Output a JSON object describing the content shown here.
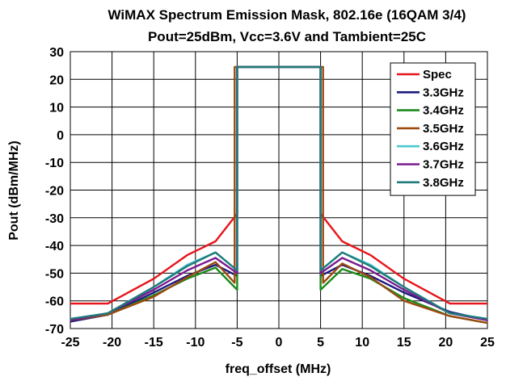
{
  "chart_data": {
    "type": "line",
    "title": "WiMAX Spectrum Emission Mask, 802.16e (16QAM 3/4)",
    "subtitle": "Pout=25dBm, Vcc=3.6V and Tambient=25C",
    "xlabel": "freq_offset (MHz)",
    "ylabel": "Pout (dBm/MHz)",
    "xlim": [
      -25,
      25
    ],
    "ylim": [
      -70,
      30
    ],
    "xticks": [
      -25,
      -20,
      -15,
      -10,
      -5,
      0,
      5,
      10,
      15,
      20,
      25
    ],
    "yticks": [
      30,
      20,
      10,
      0,
      -10,
      -20,
      -30,
      -40,
      -50,
      -60,
      -70
    ],
    "grid": true,
    "legend_position": "top-right",
    "series": [
      {
        "name": "Spec",
        "color": "#e8141b",
        "x": [
          -25,
          -20.5,
          -15,
          -11,
          -7.6,
          -5,
          -5,
          5,
          5,
          7.6,
          11,
          15,
          20.5,
          25
        ],
        "y": [
          -61,
          -61,
          -52,
          -43.5,
          -38.5,
          -28.5,
          24.5,
          24.5,
          -28.5,
          -38.5,
          -43.5,
          -52,
          -61,
          -61
        ]
      },
      {
        "name": "3.3GHz",
        "color": "#1a1a80",
        "x": [
          -25,
          -20.5,
          -15,
          -11,
          -7.6,
          -5,
          -5,
          5,
          5,
          7.6,
          11,
          15,
          20.5,
          25
        ],
        "y": [
          -67.5,
          -65,
          -57,
          -51,
          -47,
          -51,
          24.5,
          24.5,
          -51,
          -47,
          -51,
          -57,
          -64,
          -67
        ]
      },
      {
        "name": "3.4GHz",
        "color": "#1b8a1b",
        "x": [
          -25,
          -20.5,
          -15,
          -11,
          -7.6,
          -5,
          -5,
          5,
          5,
          7.6,
          11,
          15,
          20.5,
          25
        ],
        "y": [
          -67,
          -65,
          -58,
          -52,
          -48,
          -56,
          24.5,
          24.5,
          -56,
          -48.5,
          -52,
          -59,
          -65.5,
          -68
        ]
      },
      {
        "name": "3.5GHz",
        "color": "#9c4a10",
        "x": [
          -25,
          -20.5,
          -15,
          -11,
          -7.6,
          -5.3,
          -5.3,
          5.3,
          5.3,
          7.6,
          11,
          15,
          20.5,
          25
        ],
        "y": [
          -67,
          -65,
          -58.5,
          -51.5,
          -46,
          -53.5,
          24.5,
          24.5,
          -53.5,
          -46.5,
          -51.5,
          -60,
          -65.5,
          -68
        ]
      },
      {
        "name": "3.6GHz",
        "color": "#4cc8d0",
        "x": [
          -25,
          -20.5,
          -15,
          -11,
          -7.6,
          -5,
          -5,
          5,
          5,
          7.6,
          11,
          15,
          20.5,
          25
        ],
        "y": [
          -66.5,
          -64.5,
          -55,
          -47,
          -42.5,
          -49,
          24.5,
          24.5,
          -49,
          -42.5,
          -47,
          -55,
          -64.5,
          -66.5
        ]
      },
      {
        "name": "3.7GHz",
        "color": "#7a1a90",
        "x": [
          -25,
          -20.5,
          -15,
          -11,
          -7.6,
          -5,
          -5,
          5,
          5,
          7.6,
          11,
          15,
          20.5,
          25
        ],
        "y": [
          -67,
          -64.5,
          -56,
          -49,
          -44.5,
          -50,
          24.5,
          24.5,
          -50,
          -44.5,
          -49,
          -56,
          -64.5,
          -67
        ]
      },
      {
        "name": "3.8GHz",
        "color": "#1f7a7a",
        "x": [
          -25,
          -20.5,
          -15,
          -11,
          -7.6,
          -5,
          -5,
          5,
          5,
          7.6,
          11,
          15,
          20.5,
          25
        ],
        "y": [
          -66.5,
          -64.5,
          -55,
          -47.5,
          -42.5,
          -49,
          24.5,
          24.5,
          -49,
          -42.5,
          -47.5,
          -55,
          -64.5,
          -66.5
        ]
      }
    ]
  }
}
